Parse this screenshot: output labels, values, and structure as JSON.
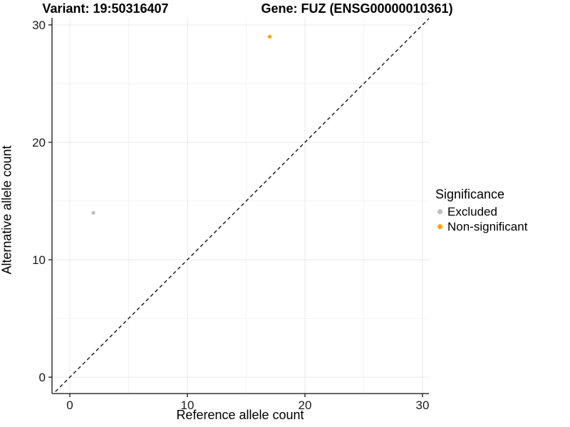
{
  "titles": {
    "variant": "Variant: 19:50316407",
    "gene": "Gene: FUZ (ENSG00000010361)"
  },
  "chart_data": {
    "type": "scatter",
    "title_left": "Variant: 19:50316407",
    "title_right": "Gene: FUZ (ENSG00000010361)",
    "xlabel": "Reference allele count",
    "ylabel": "Alternative allele count",
    "xlim": [
      -1.5,
      30.5
    ],
    "ylim": [
      -1.4,
      30.6
    ],
    "x_ticks": [
      0,
      10,
      20,
      30
    ],
    "y_ticks": [
      0,
      10,
      20,
      30
    ],
    "x_minor_ticks": [
      5,
      15,
      25
    ],
    "y_minor_ticks": [
      5,
      15,
      25
    ],
    "grid": "major+minor, very light gray on white",
    "reference_line": {
      "style": "dashed",
      "color": "#000000",
      "equation": "y = x"
    },
    "series": [
      {
        "name": "Excluded",
        "color": "#bdbdbd",
        "points": [
          {
            "x": 2,
            "y": 14
          }
        ]
      },
      {
        "name": "Non-significant",
        "color": "#ffa500",
        "points": [
          {
            "x": 17,
            "y": 29
          }
        ]
      }
    ],
    "legend": {
      "title": "Significance",
      "position": "right"
    }
  },
  "colors": {
    "excluded": "#bdbdbd",
    "non_significant": "#ffa500",
    "axis_line": "#333333",
    "tick_label": "#1a1a1a",
    "grid_major": "#e9e9e9",
    "grid_minor": "#f4f4f4",
    "background": "#ffffff"
  }
}
